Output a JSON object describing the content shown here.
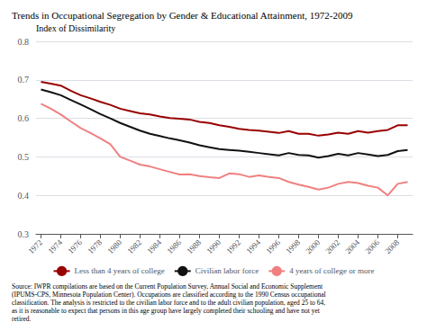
{
  "chart_data": {
    "type": "line",
    "title": "Trends in Occupational Segregation by Gender & Educational Attainment, 1972-2009",
    "ylabel": "Index of Dissimilarity",
    "annotations": [
      "Source: IWPR compilations are based on the Current Population Survey, Annual Social and Economic Supplement\n(IPUMS-CPS, Minnesota Population Center). Occupations are classified according to the 1990 Census occupational\nclassification. The analysis is restricted to the civilian labor force and to the adult civilian population, aged 25 to 64,\nas it is reasonable to expect that persons in this age group have largely completed their schooling and have not yet\nretired."
    ],
    "x": [
      1972,
      1973,
      1974,
      1975,
      1976,
      1977,
      1978,
      1979,
      1980,
      1981,
      1982,
      1983,
      1984,
      1985,
      1986,
      1987,
      1988,
      1989,
      1990,
      1991,
      1992,
      1993,
      1994,
      1995,
      1996,
      1997,
      1998,
      1999,
      2000,
      2001,
      2002,
      2003,
      2004,
      2005,
      2006,
      2007,
      2008,
      2009
    ],
    "series": [
      {
        "name": "Less than 4 years of college",
        "color": "#990000",
        "values": [
          0.695,
          0.69,
          0.685,
          0.672,
          0.66,
          0.652,
          0.643,
          0.635,
          0.625,
          0.619,
          0.613,
          0.61,
          0.605,
          0.601,
          0.599,
          0.597,
          0.591,
          0.588,
          0.582,
          0.578,
          0.573,
          0.57,
          0.568,
          0.565,
          0.562,
          0.567,
          0.56,
          0.56,
          0.555,
          0.558,
          0.563,
          0.56,
          0.567,
          0.563,
          0.567,
          0.57,
          0.582,
          0.582
        ]
      },
      {
        "name": "Civilian labor force",
        "color": "#111111",
        "values": [
          0.675,
          0.668,
          0.66,
          0.648,
          0.636,
          0.624,
          0.611,
          0.6,
          0.588,
          0.578,
          0.568,
          0.56,
          0.554,
          0.548,
          0.543,
          0.537,
          0.53,
          0.525,
          0.52,
          0.518,
          0.516,
          0.513,
          0.51,
          0.507,
          0.504,
          0.51,
          0.505,
          0.504,
          0.498,
          0.502,
          0.508,
          0.504,
          0.51,
          0.506,
          0.502,
          0.505,
          0.515,
          0.518
        ]
      },
      {
        "name": "4 years of college or more",
        "color": "#f08080",
        "values": [
          0.638,
          0.625,
          0.61,
          0.592,
          0.575,
          0.562,
          0.548,
          0.533,
          0.5,
          0.49,
          0.48,
          0.475,
          0.468,
          0.461,
          0.454,
          0.455,
          0.45,
          0.447,
          0.445,
          0.457,
          0.455,
          0.448,
          0.452,
          0.448,
          0.445,
          0.435,
          0.428,
          0.422,
          0.415,
          0.42,
          0.43,
          0.435,
          0.432,
          0.425,
          0.42,
          0.4,
          0.43,
          0.435
        ]
      }
    ],
    "xlim": [
      1971.5,
      2009.5
    ],
    "xticks": [
      1972,
      1974,
      1976,
      1978,
      1980,
      1982,
      1984,
      1986,
      1988,
      1990,
      1992,
      1994,
      1996,
      1998,
      2000,
      2002,
      2004,
      2006,
      2008
    ],
    "ylim": [
      0.3,
      0.8
    ],
    "yticks": [
      0.3,
      0.4,
      0.5,
      0.6,
      0.7,
      0.8
    ],
    "grid": true,
    "legend": "bottom"
  }
}
